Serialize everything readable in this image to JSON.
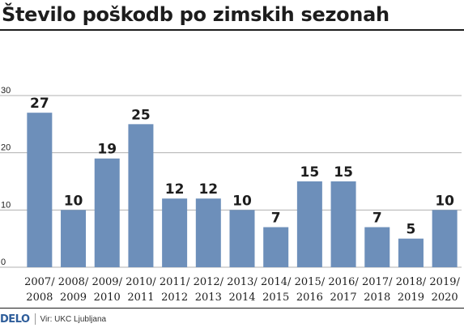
{
  "title": "Število poškodb po zimskih sezonah",
  "brand": {
    "logo": "DELO",
    "source": "Vir: UKC Ljubljana"
  },
  "colors": {
    "bar": "#6d8fba",
    "grid": "#b0b0b0",
    "text": "#1d1d1d"
  },
  "chart_data": {
    "type": "bar",
    "title": "Število poškodb po zimskih sezonah",
    "xlabel": "",
    "ylabel": "",
    "ylim": [
      0,
      30
    ],
    "yticks": [
      0,
      10,
      20,
      30
    ],
    "grid": true,
    "categories": [
      "2007/ 2008",
      "2008/ 2009",
      "2009/ 2010",
      "2010/ 2011",
      "2011/ 2012",
      "2012/ 2013",
      "2013/ 2014",
      "2014/ 2015",
      "2015/ 2016",
      "2016/ 2017",
      "2017/ 2018",
      "2018/ 2019",
      "2019/ 2020"
    ],
    "category_lines": [
      [
        "2007/",
        "2008"
      ],
      [
        "2008/",
        "2009"
      ],
      [
        "2009/",
        "2010"
      ],
      [
        "2010/",
        "2011"
      ],
      [
        "2011/",
        "2012"
      ],
      [
        "2012/",
        "2013"
      ],
      [
        "2013/",
        "2014"
      ],
      [
        "2014/",
        "2015"
      ],
      [
        "2015/",
        "2016"
      ],
      [
        "2016/",
        "2017"
      ],
      [
        "2017/",
        "2018"
      ],
      [
        "2018/",
        "2019"
      ],
      [
        "2019/",
        "2020"
      ]
    ],
    "values": [
      27,
      10,
      19,
      25,
      12,
      12,
      10,
      7,
      15,
      15,
      7,
      5,
      10
    ]
  }
}
